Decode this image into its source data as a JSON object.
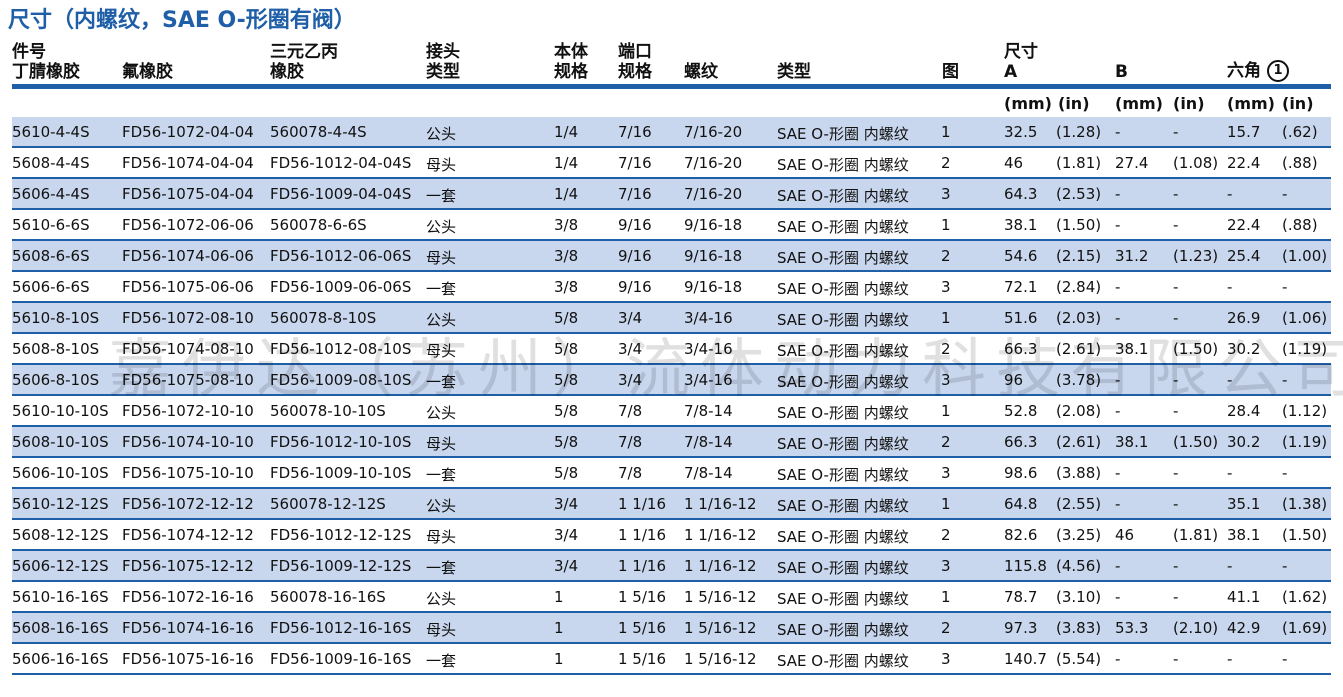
{
  "title": "尺寸（内螺纹，SAE O-形圈有阀）",
  "headers": {
    "part_no": "件号",
    "nitrile": "丁腈橡胶",
    "fluoro": "氟橡胶",
    "epdm_1": "三元乙丙",
    "epdm_2": "橡胶",
    "joint_1": "接头",
    "joint_2": "类型",
    "body_1": "本体",
    "body_2": "规格",
    "port_1": "端口",
    "port_2": "规格",
    "thread": "螺纹",
    "type": "类型",
    "fig": "图",
    "dim_1": "尺寸",
    "dim_a": "A",
    "dim_b": "B",
    "hex": "六角",
    "hex_note": "1"
  },
  "units": {
    "mm": "(mm)",
    "in": "(in)"
  },
  "watermark": "嘉伊达（苏州）流体动力科技有限公司",
  "rows": [
    [
      "5610-4-4S",
      "FD56-1072-04-04",
      "560078-4-4S",
      "公头",
      "1/4",
      "7/16",
      "7/16-20",
      "SAE O-形圈 内螺纹",
      "1",
      "32.5",
      "(1.28)",
      "-",
      "-",
      "15.7",
      "(.62)"
    ],
    [
      "5608-4-4S",
      "FD56-1074-04-04",
      "FD56-1012-04-04S",
      "母头",
      "1/4",
      "7/16",
      "7/16-20",
      "SAE O-形圈 内螺纹",
      "2",
      "46",
      "(1.81)",
      "27.4",
      "(1.08)",
      "22.4",
      "(.88)"
    ],
    [
      "5606-4-4S",
      "FD56-1075-04-04",
      "FD56-1009-04-04S",
      "一套",
      "1/4",
      "7/16",
      "7/16-20",
      "SAE O-形圈 内螺纹",
      "3",
      "64.3",
      "(2.53)",
      "-",
      "-",
      "-",
      "-"
    ],
    [
      "5610-6-6S",
      "FD56-1072-06-06",
      "560078-6-6S",
      "公头",
      "3/8",
      "9/16",
      "9/16-18",
      "SAE O-形圈 内螺纹",
      "1",
      "38.1",
      "(1.50)",
      "-",
      "-",
      "22.4",
      "(.88)"
    ],
    [
      "5608-6-6S",
      "FD56-1074-06-06",
      "FD56-1012-06-06S",
      "母头",
      "3/8",
      "9/16",
      "9/16-18",
      "SAE O-形圈 内螺纹",
      "2",
      "54.6",
      "(2.15)",
      "31.2",
      "(1.23)",
      "25.4",
      "(1.00)"
    ],
    [
      "5606-6-6S",
      "FD56-1075-06-06",
      "FD56-1009-06-06S",
      "一套",
      "3/8",
      "9/16",
      "9/16-18",
      "SAE O-形圈 内螺纹",
      "3",
      "72.1",
      "(2.84)",
      "-",
      "-",
      "-",
      "-"
    ],
    [
      "5610-8-10S",
      "FD56-1072-08-10",
      "560078-8-10S",
      "公头",
      "5/8",
      "3/4",
      "3/4-16",
      "SAE O-形圈 内螺纹",
      "1",
      "51.6",
      "(2.03)",
      "-",
      "-",
      "26.9",
      "(1.06)"
    ],
    [
      "5608-8-10S",
      "FD56-1074-08-10",
      "FD56-1012-08-10S",
      "母头",
      "5/8",
      "3/4",
      "3/4-16",
      "SAE O-形圈 内螺纹",
      "2",
      "66.3",
      "(2.61)",
      "38.1",
      "(1.50)",
      "30.2",
      "(1.19)"
    ],
    [
      "5606-8-10S",
      "FD56-1075-08-10",
      "FD56-1009-08-10S",
      "一套",
      "5/8",
      "3/4",
      "3/4-16",
      "SAE O-形圈 内螺纹",
      "3",
      "96",
      "(3.78)",
      "-",
      "-",
      "-",
      "-"
    ],
    [
      "5610-10-10S",
      "FD56-1072-10-10",
      "560078-10-10S",
      "公头",
      "5/8",
      "7/8",
      "7/8-14",
      "SAE O-形圈 内螺纹",
      "1",
      "52.8",
      "(2.08)",
      "-",
      "-",
      "28.4",
      "(1.12)"
    ],
    [
      "5608-10-10S",
      "FD56-1074-10-10",
      "FD56-1012-10-10S",
      "母头",
      "5/8",
      "7/8",
      "7/8-14",
      "SAE O-形圈 内螺纹",
      "2",
      "66.3",
      "(2.61)",
      "38.1",
      "(1.50)",
      "30.2",
      "(1.19)"
    ],
    [
      "5606-10-10S",
      "FD56-1075-10-10",
      "FD56-1009-10-10S",
      "一套",
      "5/8",
      "7/8",
      "7/8-14",
      "SAE O-形圈 内螺纹",
      "3",
      "98.6",
      "(3.88)",
      "-",
      "-",
      "-",
      "-"
    ],
    [
      "5610-12-12S",
      "FD56-1072-12-12",
      "560078-12-12S",
      "公头",
      "3/4",
      "1 1/16",
      "1 1/16-12",
      "SAE O-形圈 内螺纹",
      "1",
      "64.8",
      "(2.55)",
      "-",
      "-",
      "35.1",
      "(1.38)"
    ],
    [
      "5608-12-12S",
      "FD56-1074-12-12",
      "FD56-1012-12-12S",
      "母头",
      "3/4",
      "1 1/16",
      "1 1/16-12",
      "SAE O-形圈 内螺纹",
      "2",
      "82.6",
      "(3.25)",
      "46",
      "(1.81)",
      "38.1",
      "(1.50)"
    ],
    [
      "5606-12-12S",
      "FD56-1075-12-12",
      "FD56-1009-12-12S",
      "一套",
      "3/4",
      "1 1/16",
      "1 1/16-12",
      "SAE O-形圈 内螺纹",
      "3",
      "115.8",
      "(4.56)",
      "-",
      "-",
      "-",
      "-"
    ],
    [
      "5610-16-16S",
      "FD56-1072-16-16",
      "560078-16-16S",
      "公头",
      "1",
      "1 5/16",
      "1 5/16-12",
      "SAE O-形圈 内螺纹",
      "1",
      "78.7",
      "(3.10)",
      "-",
      "-",
      "41.1",
      "(1.62)"
    ],
    [
      "5608-16-16S",
      "FD56-1074-16-16",
      "FD56-1012-16-16S",
      "母头",
      "1",
      "1 5/16",
      "1 5/16-12",
      "SAE O-形圈 内螺纹",
      "2",
      "97.3",
      "(3.83)",
      "53.3",
      "(2.10)",
      "42.9",
      "(1.69)"
    ],
    [
      "5606-16-16S",
      "FD56-1075-16-16",
      "FD56-1009-16-16S",
      "一套",
      "1",
      "1 5/16",
      "1 5/16-12",
      "SAE O-形圈 内螺纹",
      "3",
      "140.7",
      "(5.54)",
      "-",
      "-",
      "-",
      "-"
    ]
  ]
}
